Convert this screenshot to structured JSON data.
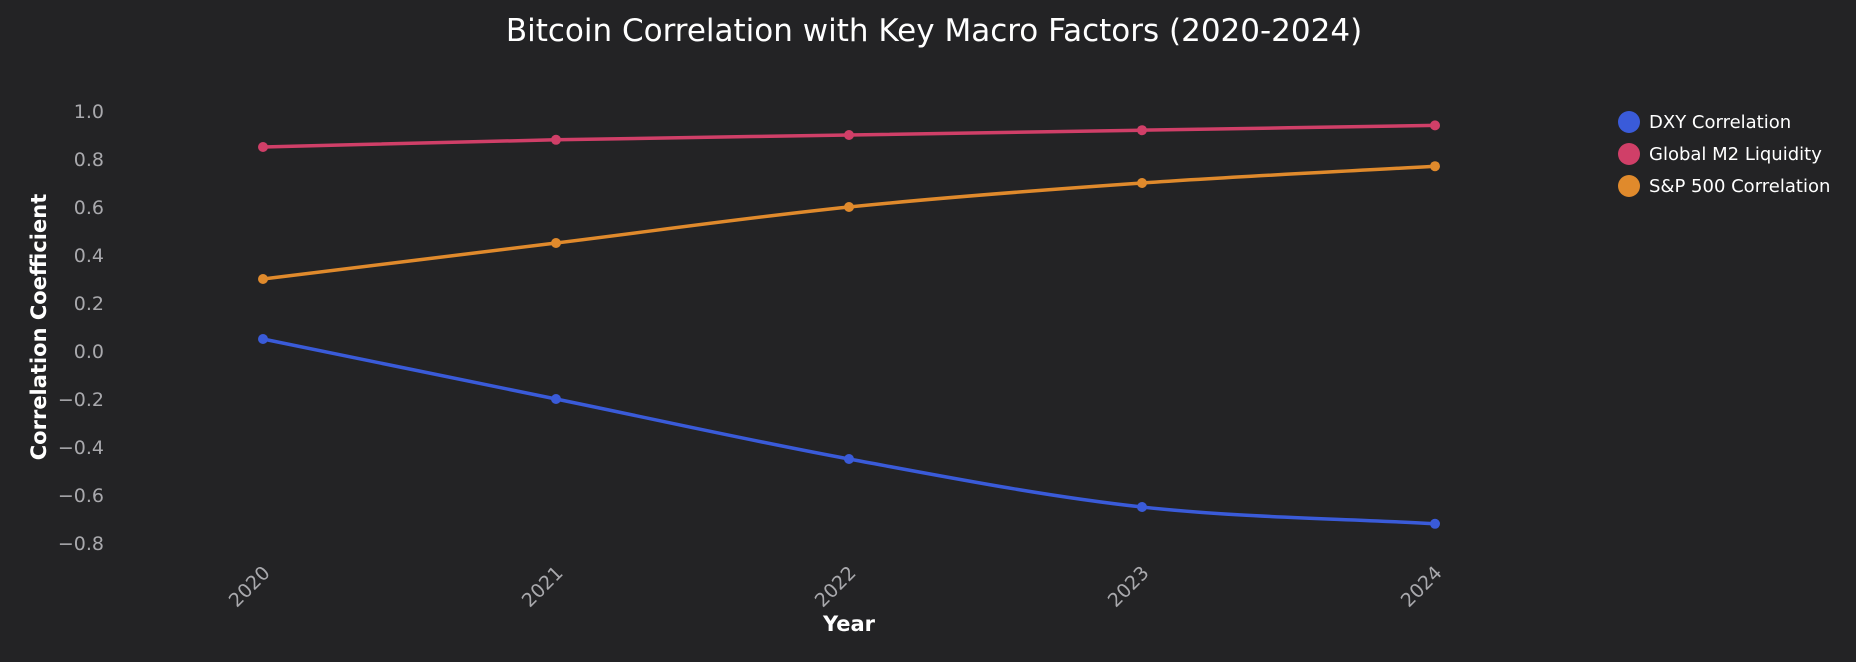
{
  "chart_data": {
    "type": "line",
    "title": "Bitcoin Correlation with Key Macro Factors (2020-2024)",
    "xlabel": "Year",
    "ylabel": "Correlation Coefficient",
    "x": [
      "2020",
      "2021",
      "2022",
      "2023",
      "2024"
    ],
    "ylim": [
      -0.8,
      1.0
    ],
    "yticks": [
      1.0,
      0.8,
      0.6,
      0.4,
      0.2,
      0.0,
      -0.2,
      -0.4,
      -0.6,
      -0.8
    ],
    "ytick_labels": [
      "1.0",
      "0.8",
      "0.6",
      "0.4",
      "0.2",
      "0.0",
      "−0.2",
      "−0.4",
      "−0.6",
      "−0.8"
    ],
    "grid": false,
    "legend_position": "top-right",
    "series": [
      {
        "name": "DXY Correlation",
        "color": "#3a5bd9",
        "values": [
          0.05,
          -0.2,
          -0.45,
          -0.65,
          -0.72
        ]
      },
      {
        "name": "Global M2 Liquidity",
        "color": "#d03f68",
        "values": [
          0.85,
          0.88,
          0.9,
          0.92,
          0.94
        ]
      },
      {
        "name": "S&P 500 Correlation",
        "color": "#e08a2c",
        "values": [
          0.3,
          0.45,
          0.6,
          0.7,
          0.77
        ]
      }
    ]
  }
}
